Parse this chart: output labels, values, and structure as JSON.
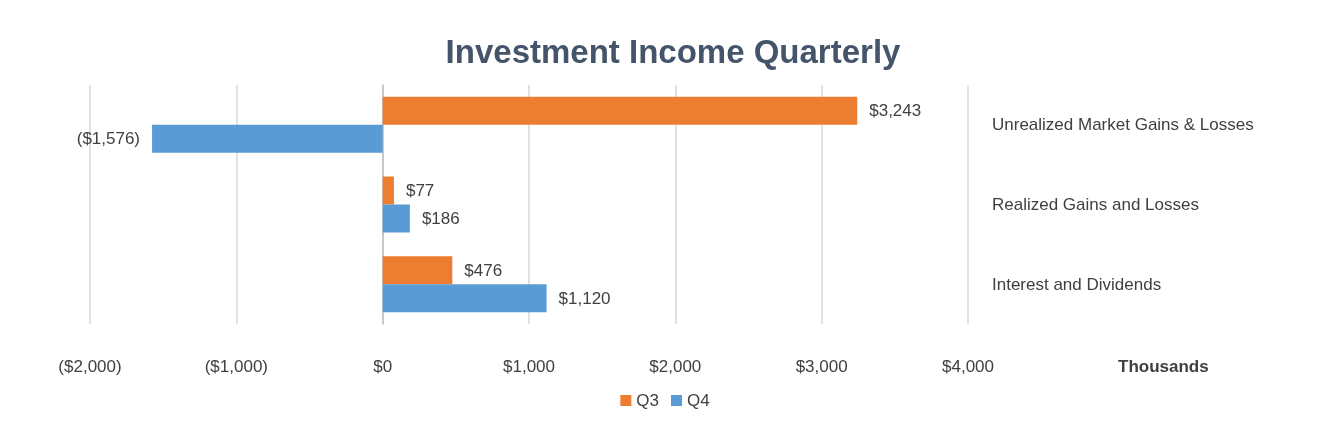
{
  "chart_data": {
    "type": "bar",
    "orientation": "horizontal",
    "title": "Investment Income Quarterly",
    "xlabel": "Thousands",
    "categories": [
      "Unrealized Market Gains & Losses",
      "Realized Gains and Losses",
      "Interest and Dividends"
    ],
    "series": [
      {
        "name": "Q3",
        "color": "#ed7d31",
        "values": [
          3243,
          77,
          476
        ],
        "value_labels": [
          "$3,243",
          "$77",
          "$476"
        ]
      },
      {
        "name": "Q4",
        "color": "#5b9bd5",
        "values": [
          -1576,
          186,
          1120
        ],
        "value_labels": [
          "($1,576)",
          "$186",
          "$1,120"
        ]
      }
    ],
    "xlim": [
      -2000,
      4000
    ],
    "xticks": [
      {
        "value": -2000,
        "label": "($2,000)"
      },
      {
        "value": -1000,
        "label": "($1,000)"
      },
      {
        "value": 0,
        "label": "$0"
      },
      {
        "value": 1000,
        "label": "$1,000"
      },
      {
        "value": 2000,
        "label": "$2,000"
      },
      {
        "value": 3000,
        "label": "$3,000"
      },
      {
        "value": 4000,
        "label": "$4,000"
      }
    ],
    "grid": "x",
    "legend": "bottom"
  }
}
